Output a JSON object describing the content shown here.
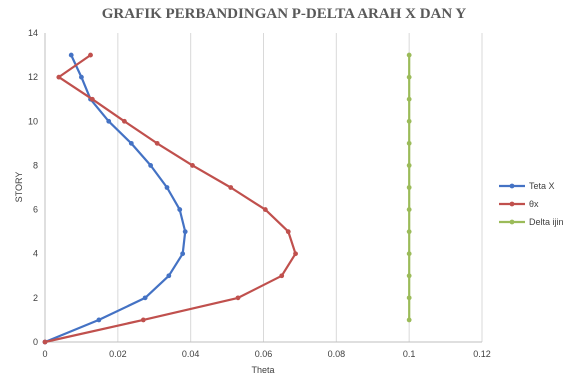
{
  "chart_data": {
    "type": "line",
    "title": "GRAFIK PERBANDINGAN P-DELTA ARAH X DAN Y",
    "xlabel": "Theta",
    "ylabel": "STORY",
    "xlim": [
      0,
      0.12
    ],
    "ylim": [
      0,
      14
    ],
    "x_ticks": [
      "0",
      "0.02",
      "0.04",
      "0.06",
      "0.08",
      "0.1",
      "0.12"
    ],
    "y_ticks": [
      "0",
      "2",
      "4",
      "6",
      "8",
      "10",
      "12",
      "14"
    ],
    "grid": "vertical",
    "legend_position": "right",
    "series": [
      {
        "name": "Teta X",
        "color": "#4472C4",
        "x": [
          0,
          0.0148,
          0.0275,
          0.034,
          0.0378,
          0.0385,
          0.037,
          0.0335,
          0.029,
          0.0237,
          0.0175,
          0.0125,
          0.01,
          0.0072
        ],
        "y": [
          0,
          1,
          2,
          3,
          4,
          5,
          6,
          7,
          8,
          9,
          10,
          11,
          12,
          13
        ]
      },
      {
        "name": "θx",
        "color": "#C0504D",
        "x": [
          0,
          0.027,
          0.053,
          0.065,
          0.0688,
          0.0668,
          0.0605,
          0.051,
          0.0405,
          0.0308,
          0.0218,
          0.013,
          0.0038,
          0.0125
        ],
        "y": [
          0,
          1,
          2,
          3,
          4,
          5,
          6,
          7,
          8,
          9,
          10,
          11,
          12,
          13
        ]
      },
      {
        "name": "Delta ijin",
        "color": "#9BBB59",
        "x": [
          0.1,
          0.1,
          0.1,
          0.1,
          0.1,
          0.1,
          0.1,
          0.1,
          0.1,
          0.1,
          0.1,
          0.1,
          0.1
        ],
        "y": [
          1,
          2,
          3,
          4,
          5,
          6,
          7,
          8,
          9,
          10,
          11,
          12,
          13
        ]
      }
    ]
  }
}
